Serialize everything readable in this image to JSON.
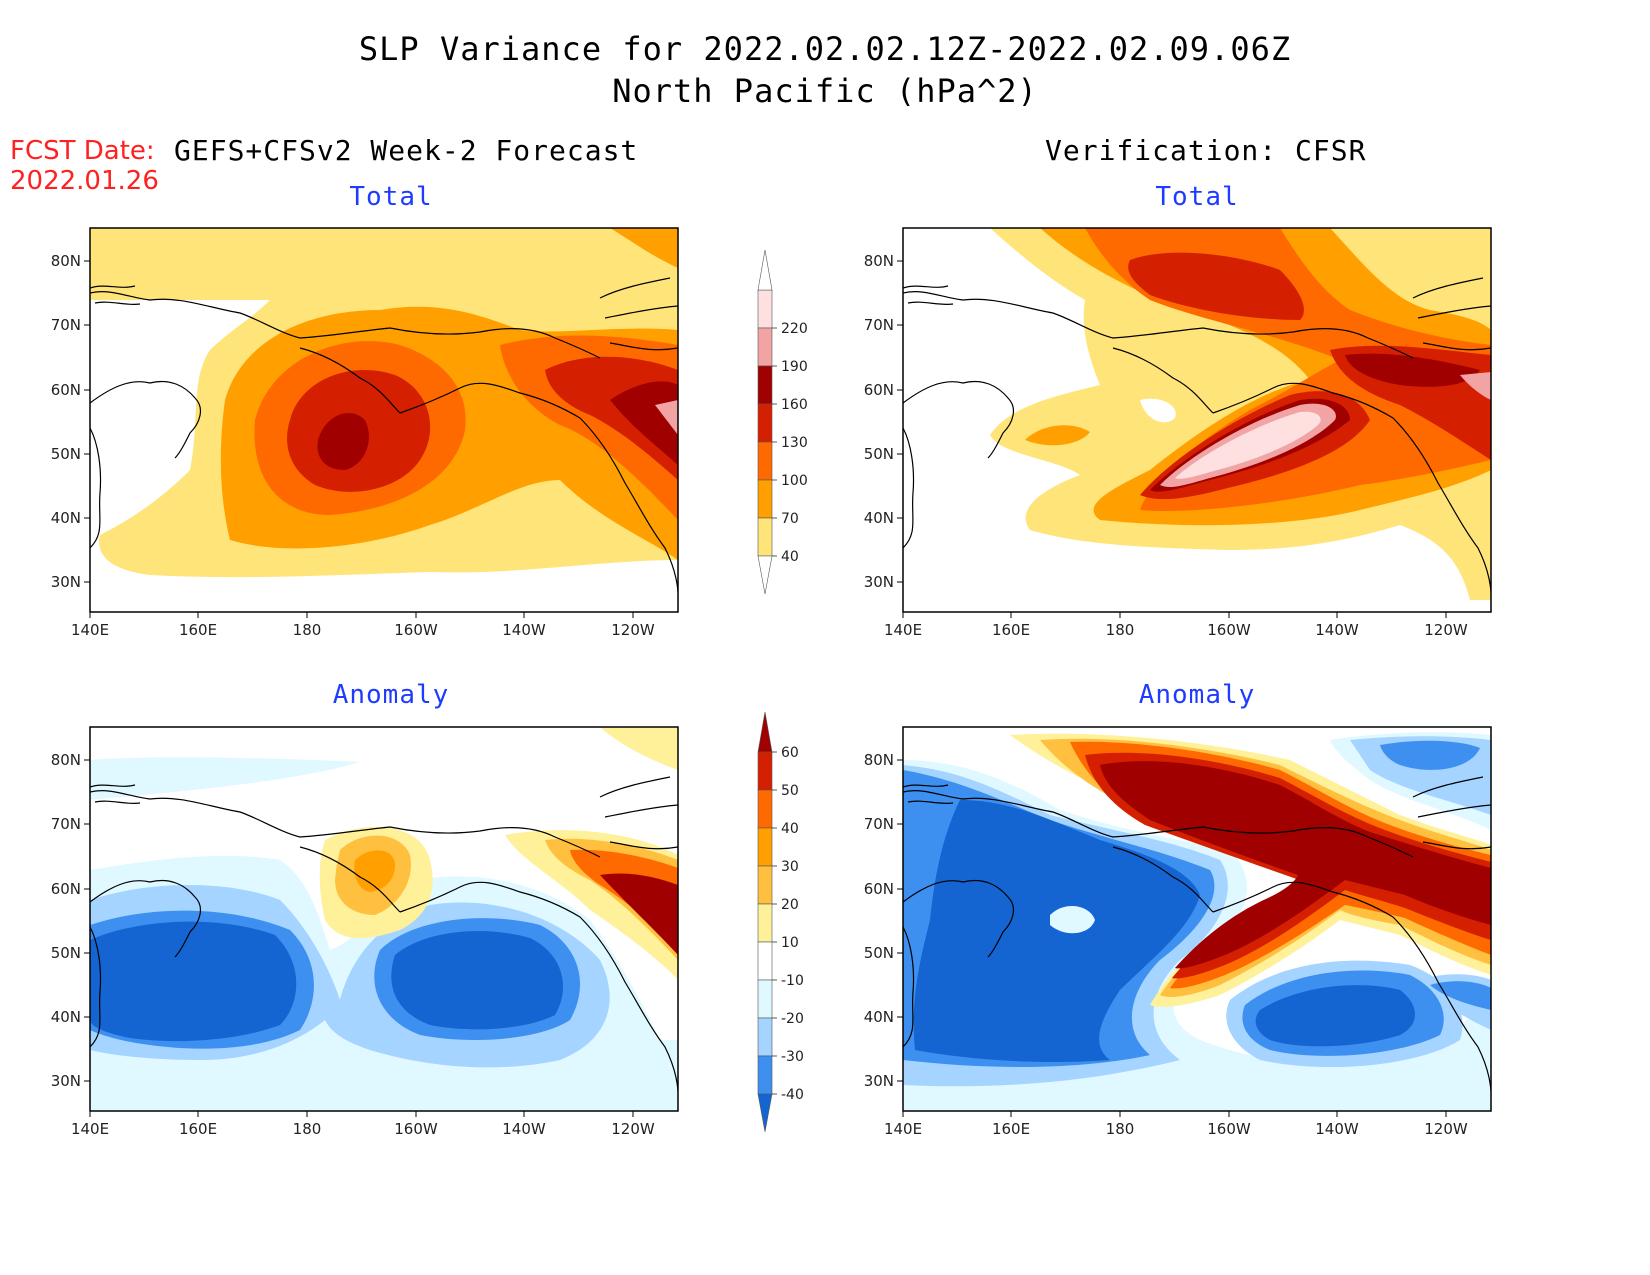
{
  "header": {
    "title_line1": "SLP Variance for 2022.02.02.12Z-2022.02.09.06Z",
    "title_line2": "North Pacific (hPa^2)",
    "fcst_label": "FCST Date:",
    "fcst_date": "2022.01.26",
    "left_subtitle": "GEFS+CFSv2 Week-2 Forecast",
    "right_subtitle": "Verification: CFSR"
  },
  "panels": [
    {
      "title": "Total"
    },
    {
      "title": "Total"
    },
    {
      "title": "Anomaly"
    },
    {
      "title": "Anomaly"
    }
  ],
  "axes": {
    "x_ticks": [
      "140E",
      "160E",
      "180",
      "160W",
      "140W",
      "120W"
    ],
    "y_ticks": [
      "80N",
      "70N",
      "60N",
      "50N",
      "40N",
      "30N"
    ]
  },
  "colorbars": {
    "total": {
      "labels": [
        "220",
        "190",
        "160",
        "130",
        "100",
        "70",
        "40"
      ],
      "colors": [
        "#ffe0e0",
        "#f2a4a4",
        "#a00000",
        "#d42000",
        "#ff6a00",
        "#ffa000",
        "#ffe47a"
      ]
    },
    "anomaly": {
      "labels": [
        "60",
        "50",
        "40",
        "30",
        "20",
        "10",
        "-10",
        "-20",
        "-30",
        "-40"
      ],
      "colors": [
        "#a00000",
        "#d42000",
        "#ff6a00",
        "#ffa000",
        "#ffc040",
        "#fff09a",
        "#ffffff",
        "#e0f8ff",
        "#a4d4ff",
        "#3d8ff0",
        "#1464d2"
      ]
    }
  }
}
